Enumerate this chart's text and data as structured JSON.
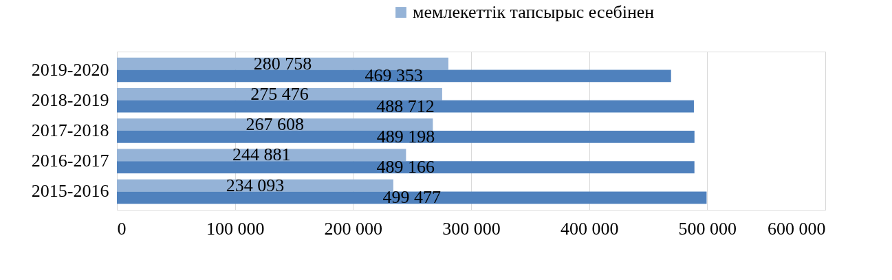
{
  "chart_data": {
    "type": "bar",
    "orientation": "horizontal",
    "categories": [
      "2019-2020",
      "2018-2019",
      "2017-2018",
      "2016-2017",
      "2015-2016"
    ],
    "series": [
      {
        "name": "мемлекеттік тапсырыс есебінен",
        "color": "#95b3d7",
        "values": [
          280758,
          275476,
          267608,
          244881,
          234093
        ]
      },
      {
        "color": "#4f81bd",
        "values": [
          469353,
          488712,
          489198,
          489166,
          499477
        ]
      }
    ],
    "data_labels": true,
    "xlim": [
      0,
      600000
    ],
    "xticks": [
      0,
      {
        "value": 100000,
        "label": "100 000"
      },
      {
        "value": 200000,
        "label": "200 000"
      },
      {
        "value": 300000,
        "label": "300 000"
      },
      {
        "value": 400000,
        "label": "400 000"
      },
      {
        "value": 500000,
        "label": "500 000"
      },
      {
        "value": 600000,
        "label": "600 000"
      }
    ],
    "grid": "x",
    "legend": "top"
  }
}
